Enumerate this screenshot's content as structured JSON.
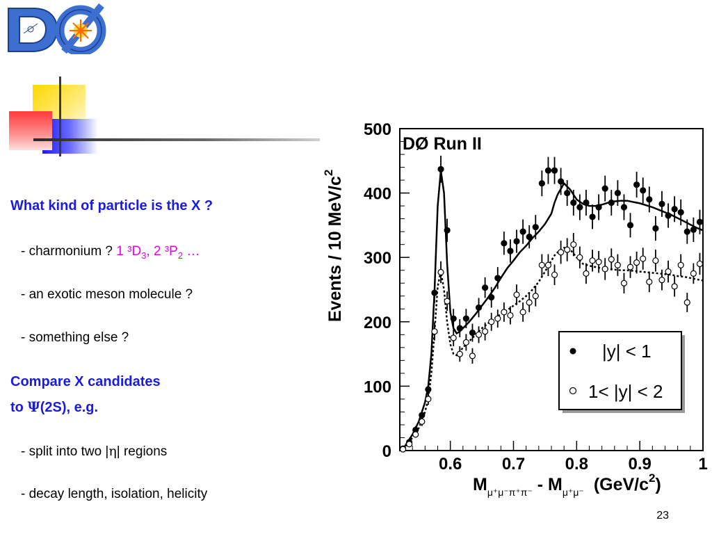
{
  "logo": {
    "text": "DØ"
  },
  "left": {
    "question1": "What kind of particle is the X ?",
    "item1": {
      "prefix": "- charmonium ?",
      "hl_a": "1 ³D",
      "hl_a_sub": "3",
      "hl_b": ", 2 ³P",
      "hl_b_sub": "2",
      "hl_c": " …"
    },
    "item2": "- an exotic meson molecule ?",
    "item3": "- something else ?",
    "question2_line1": "Compare X candidates",
    "question2_line2_pre": "to ",
    "question2_psi": "Ψ",
    "question2_line2_post": "(2S), e.g.",
    "item4_pre": "- split into two |",
    "item4_eta": "η",
    "item4_post": "| regions",
    "item5": "- decay length, isolation, helicity"
  },
  "page_number": "23",
  "chart_data": {
    "type": "scatter",
    "title": "DØ Run II",
    "ylabel": "Events / 10 MeV/c",
    "ylabel_sup": "2",
    "xlabel": {
      "main": "M",
      "sub1": "μ⁺μ⁻π⁺π⁻",
      "minus": " - M",
      "sub2": "μ⁺μ⁻",
      "unit": "(GeV/c",
      "unit_sup": "2",
      "unit_close": ")"
    },
    "xlim": [
      0.52,
      1.0
    ],
    "ylim": [
      0,
      500
    ],
    "xticks": [
      "0.6",
      "0.7",
      "0.8",
      "0.9",
      "1"
    ],
    "xtick_values": [
      0.6,
      0.7,
      0.8,
      0.9,
      1.0
    ],
    "yticks": [
      "0",
      "100",
      "200",
      "300",
      "400",
      "500"
    ],
    "ytick_values": [
      0,
      100,
      200,
      300,
      400,
      500
    ],
    "legend_position": "bottom-right",
    "series": [
      {
        "name": "|y| < 1",
        "marker": "filled",
        "x": [
          0.525,
          0.535,
          0.545,
          0.555,
          0.565,
          0.575,
          0.585,
          0.595,
          0.605,
          0.615,
          0.625,
          0.635,
          0.645,
          0.655,
          0.665,
          0.675,
          0.685,
          0.695,
          0.705,
          0.715,
          0.725,
          0.735,
          0.745,
          0.755,
          0.765,
          0.775,
          0.785,
          0.795,
          0.805,
          0.815,
          0.825,
          0.835,
          0.845,
          0.855,
          0.865,
          0.875,
          0.885,
          0.895,
          0.905,
          0.915,
          0.925,
          0.935,
          0.945,
          0.955,
          0.965,
          0.975,
          0.985,
          0.995
        ],
        "y": [
          3,
          13,
          32,
          55,
          95,
          245,
          437,
          342,
          205,
          190,
          205,
          183,
          222,
          253,
          238,
          268,
          322,
          310,
          325,
          340,
          332,
          347,
          415,
          435,
          435,
          418,
          400,
          385,
          378,
          385,
          363,
          378,
          407,
          385,
          400,
          378,
          350,
          413,
          404,
          390,
          345,
          383,
          365,
          375,
          370,
          340,
          343,
          355
        ],
        "errors": [
          2,
          4,
          6,
          8,
          10,
          16,
          21,
          18,
          15,
          14,
          15,
          14,
          15,
          16,
          16,
          17,
          18,
          18,
          18,
          19,
          18,
          19,
          20,
          21,
          21,
          21,
          20,
          20,
          20,
          20,
          19,
          20,
          20,
          20,
          20,
          20,
          19,
          20,
          20,
          20,
          19,
          20,
          19,
          20,
          20,
          19,
          19,
          19
        ]
      },
      {
        "name": "1< |y| < 2",
        "marker": "open",
        "x": [
          0.525,
          0.535,
          0.545,
          0.555,
          0.565,
          0.575,
          0.585,
          0.595,
          0.605,
          0.615,
          0.625,
          0.635,
          0.645,
          0.655,
          0.665,
          0.675,
          0.685,
          0.695,
          0.705,
          0.715,
          0.725,
          0.735,
          0.745,
          0.755,
          0.765,
          0.775,
          0.785,
          0.795,
          0.805,
          0.815,
          0.825,
          0.835,
          0.845,
          0.855,
          0.865,
          0.875,
          0.885,
          0.895,
          0.905,
          0.915,
          0.925,
          0.935,
          0.945,
          0.955,
          0.965,
          0.975,
          0.985,
          0.995
        ],
        "y": [
          2,
          10,
          25,
          45,
          80,
          185,
          277,
          232,
          175,
          150,
          168,
          147,
          180,
          185,
          200,
          205,
          215,
          210,
          242,
          215,
          230,
          240,
          288,
          288,
          273,
          308,
          312,
          320,
          300,
          275,
          295,
          293,
          282,
          297,
          288,
          260,
          285,
          292,
          298,
          262,
          295,
          265,
          278,
          255,
          288,
          230,
          275,
          290
        ],
        "errors": [
          2,
          3,
          5,
          7,
          9,
          14,
          17,
          15,
          13,
          12,
          13,
          12,
          13,
          14,
          14,
          14,
          15,
          14,
          16,
          15,
          15,
          16,
          17,
          17,
          16,
          18,
          18,
          18,
          17,
          16,
          17,
          17,
          17,
          17,
          17,
          16,
          17,
          17,
          17,
          16,
          17,
          16,
          17,
          16,
          17,
          15,
          16,
          17
        ]
      }
    ],
    "fit_solid": {
      "x": [
        0.525,
        0.54,
        0.55,
        0.56,
        0.565,
        0.57,
        0.575,
        0.58,
        0.585,
        0.59,
        0.595,
        0.6,
        0.605,
        0.61,
        0.615,
        0.62,
        0.63,
        0.64,
        0.65,
        0.66,
        0.67,
        0.68,
        0.69,
        0.7,
        0.71,
        0.72,
        0.73,
        0.74,
        0.75,
        0.76,
        0.765,
        0.77,
        0.78,
        0.79,
        0.8,
        0.81,
        0.82,
        0.83,
        0.84,
        0.85,
        0.86,
        0.87,
        0.88,
        0.89,
        0.9,
        0.91,
        0.92,
        0.93,
        0.94,
        0.95,
        0.96,
        0.97,
        0.98,
        0.99,
        1.0
      ],
      "y": [
        2,
        25,
        45,
        75,
        100,
        150,
        250,
        380,
        435,
        400,
        290,
        215,
        190,
        182,
        185,
        190,
        200,
        212,
        225,
        238,
        252,
        268,
        283,
        295,
        308,
        318,
        330,
        340,
        352,
        368,
        385,
        398,
        415,
        405,
        390,
        383,
        380,
        380,
        382,
        385,
        387,
        388,
        388,
        386,
        384,
        381,
        378,
        374,
        370,
        366,
        361,
        356,
        351,
        346,
        342
      ]
    },
    "fit_dotted": {
      "x": [
        0.525,
        0.54,
        0.55,
        0.56,
        0.565,
        0.57,
        0.575,
        0.58,
        0.585,
        0.59,
        0.595,
        0.6,
        0.605,
        0.61,
        0.615,
        0.62,
        0.63,
        0.64,
        0.65,
        0.66,
        0.67,
        0.68,
        0.69,
        0.7,
        0.71,
        0.72,
        0.73,
        0.74,
        0.75,
        0.76,
        0.765,
        0.77,
        0.78,
        0.79,
        0.8,
        0.81,
        0.82,
        0.83,
        0.84,
        0.85,
        0.86,
        0.87,
        0.88,
        0.89,
        0.9,
        0.91,
        0.92,
        0.93,
        0.94,
        0.95,
        0.96,
        0.97,
        0.98,
        0.99,
        1.0
      ],
      "y": [
        2,
        20,
        35,
        60,
        80,
        120,
        185,
        255,
        278,
        250,
        200,
        165,
        150,
        148,
        153,
        160,
        170,
        180,
        190,
        198,
        205,
        212,
        218,
        225,
        232,
        240,
        250,
        262,
        278,
        295,
        303,
        308,
        315,
        312,
        300,
        290,
        287,
        285,
        283,
        282,
        281,
        280,
        280,
        279,
        278,
        277,
        276,
        275,
        274,
        273,
        271,
        270,
        268,
        266,
        264
      ]
    }
  }
}
